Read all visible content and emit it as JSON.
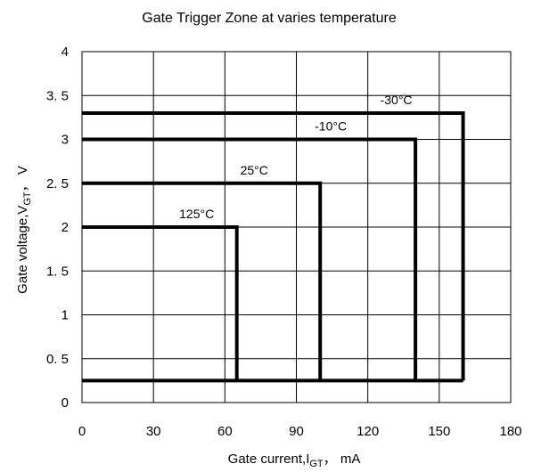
{
  "chart_data": {
    "type": "line",
    "title": "Gate Trigger Zone at varies temperature",
    "xlabel": {
      "prefix": "Gate current,I",
      "sub": "GT",
      "suffix": "， mA"
    },
    "ylabel": {
      "prefix": "Gate voltage,V",
      "sub": "GT",
      "suffix": "， V"
    },
    "xlim": [
      0,
      180
    ],
    "ylim": [
      0,
      4
    ],
    "x_ticks": [
      0,
      30,
      60,
      90,
      120,
      150,
      180
    ],
    "x_tick_labels": [
      "0",
      "30",
      "60",
      "90",
      "120",
      "150",
      "180"
    ],
    "y_ticks": [
      0,
      0.5,
      1,
      1.5,
      2,
      2.5,
      3,
      3.5,
      4
    ],
    "y_tick_labels": [
      "0",
      "0. 5",
      "1",
      "1. 5",
      "2",
      "2. 5",
      "3",
      "3. 5",
      "4"
    ],
    "grid": true,
    "series": [
      {
        "name": "-30°C",
        "igt_max": 160,
        "vgt_max": 3.3,
        "vgd_min": 0.25
      },
      {
        "name": "-10°C",
        "igt_max": 140,
        "vgt_max": 3.0,
        "vgd_min": 0.25
      },
      {
        "name": "25°C",
        "igt_max": 100,
        "vgt_max": 2.5,
        "vgd_min": 0.25
      },
      {
        "name": "125°C",
        "igt_max": 65,
        "vgt_max": 2.0,
        "vgd_min": 0.25
      }
    ],
    "colors": {
      "zone_line": "#000000",
      "grid": "#000000",
      "background": "#ffffff"
    }
  }
}
